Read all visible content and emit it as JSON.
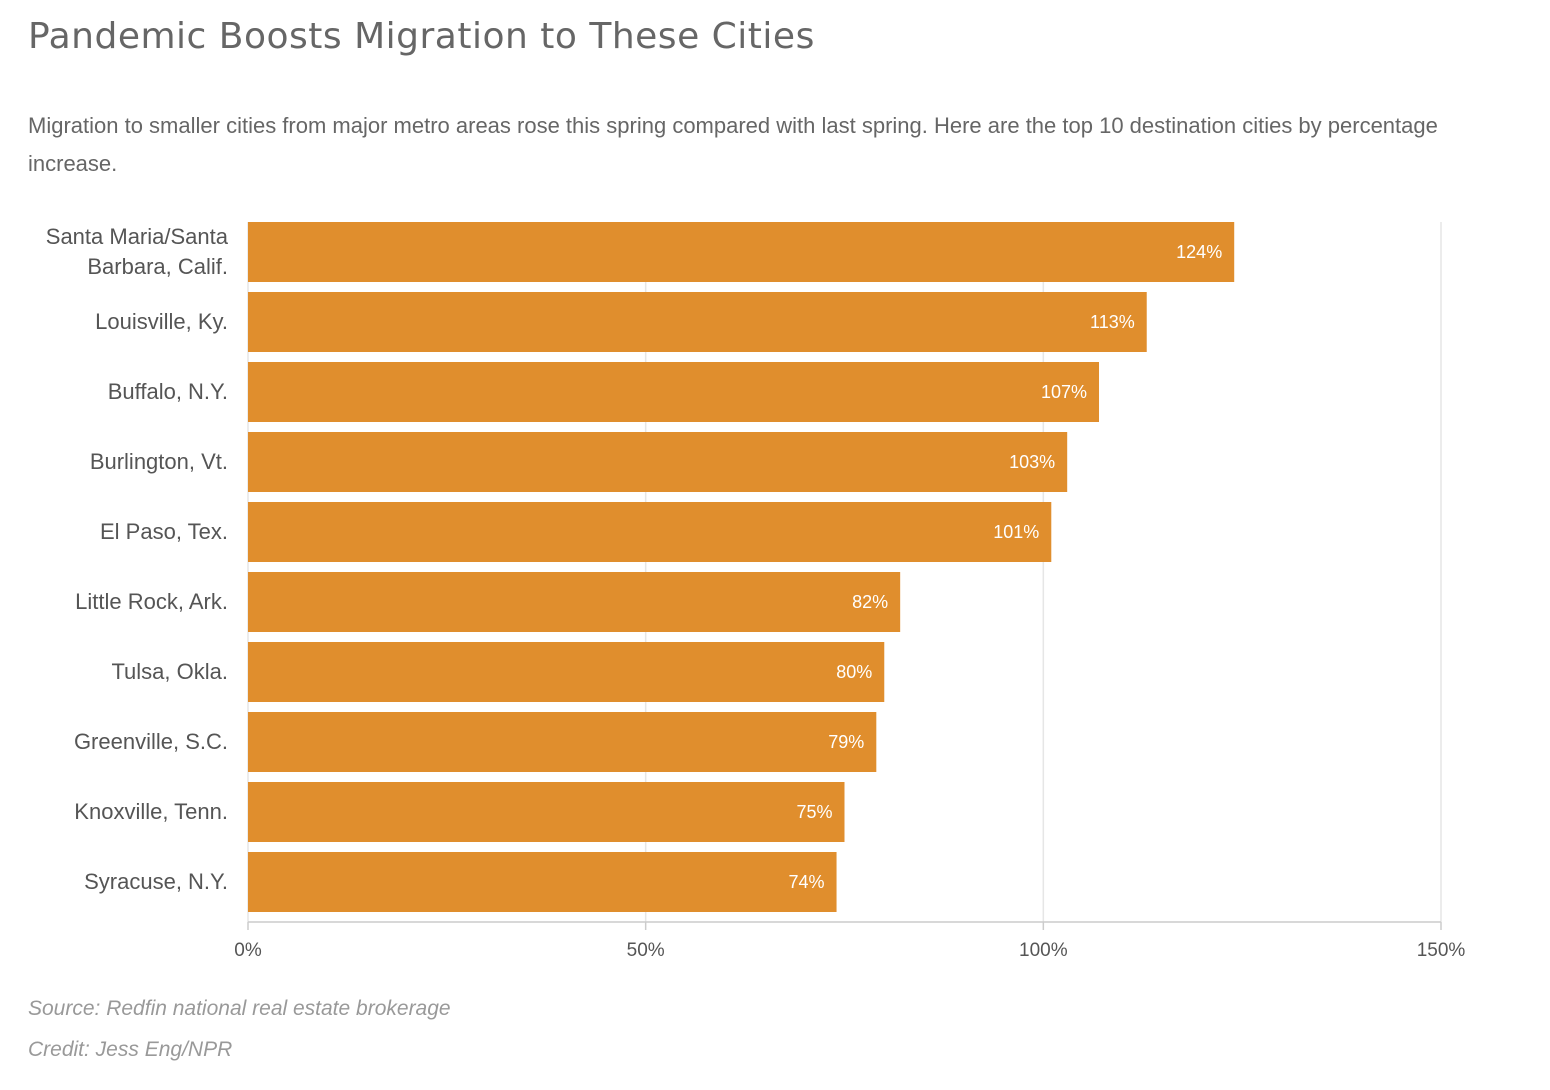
{
  "title": "Pandemic Boosts Migration to These Cities",
  "subtitle": "Migration to smaller cities from major metro areas rose this spring compared with last spring. Here are the top 10 destination cities by percentage increase.",
  "source": "Source: Redfin national real estate brokerage",
  "credit": "Credit: Jess Eng/NPR",
  "colors": {
    "bar": "#e08e2d",
    "grid": "#e6e6e6",
    "axis": "#cccccc"
  },
  "chart_data": {
    "type": "bar",
    "orientation": "horizontal",
    "categories": [
      [
        "Santa Maria/Santa",
        "Barbara, Calif."
      ],
      [
        "Louisville, Ky."
      ],
      [
        "Buffalo, N.Y."
      ],
      [
        "Burlington, Vt."
      ],
      [
        "El Paso, Tex."
      ],
      [
        "Little Rock, Ark."
      ],
      [
        "Tulsa, Okla."
      ],
      [
        "Greenville, S.C."
      ],
      [
        "Knoxville, Tenn."
      ],
      [
        "Syracuse, N.Y."
      ]
    ],
    "values": [
      124,
      113,
      107,
      103,
      101,
      82,
      80,
      79,
      75,
      74
    ],
    "value_labels": [
      "124%",
      "113%",
      "107%",
      "103%",
      "101%",
      "82%",
      "80%",
      "79%",
      "75%",
      "74%"
    ],
    "xlim": [
      0,
      150
    ],
    "ticks": [
      0,
      50,
      100,
      150
    ],
    "tick_labels": [
      "0%",
      "50%",
      "100%",
      "150%"
    ],
    "grid": true,
    "legend": false
  }
}
